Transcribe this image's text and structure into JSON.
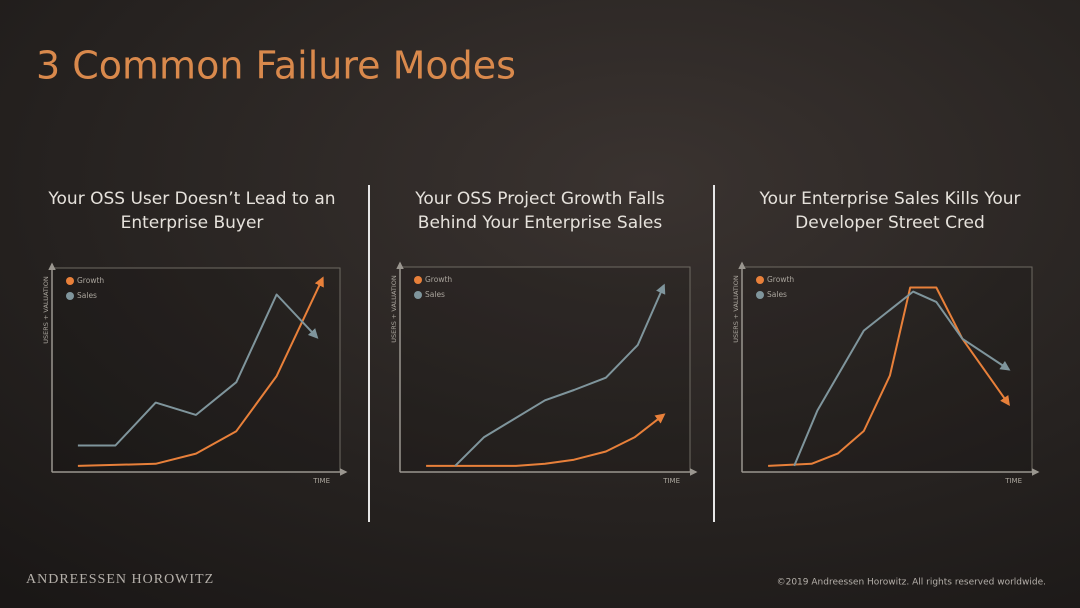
{
  "title": "3 Common Failure Modes",
  "footer": {
    "brand": "ANDREESSEN HOROWITZ",
    "copyright": "©2019 Andreessen Horowitz. All rights reserved worldwide."
  },
  "chart_data": [
    {
      "type": "line",
      "title": [
        "Your OSS User Doesn’t Lead to an",
        "Enterprise Buyer"
      ],
      "x_label": "TIME",
      "y_label": "USERS + VALUATION",
      "xlim": [
        0,
        100
      ],
      "ylim": [
        0,
        100
      ],
      "legend": "upper left",
      "series": [
        {
          "name": "Growth",
          "color": "#e8803a",
          "x": [
            9,
            36,
            50,
            64,
            78,
            94
          ],
          "values": [
            3,
            4,
            9,
            20,
            47,
            95
          ]
        },
        {
          "name": "Sales",
          "color": "#7f959c",
          "x": [
            9,
            22,
            36,
            50,
            64,
            78,
            92
          ],
          "values": [
            13,
            13,
            34,
            28,
            44,
            87,
            66
          ]
        }
      ]
    },
    {
      "type": "line",
      "title": [
        "Your OSS Project Growth Falls",
        "Behind Your Enterprise Sales"
      ],
      "x_label": "TIME",
      "y_label": "USERS + VALUATION",
      "xlim": [
        0,
        100
      ],
      "ylim": [
        0,
        100
      ],
      "legend": "upper left",
      "series": [
        {
          "name": "Growth",
          "color": "#e8803a",
          "x": [
            9,
            40,
            50,
            60,
            71,
            81,
            91
          ],
          "values": [
            3,
            3,
            4,
            6,
            10,
            17,
            28
          ]
        },
        {
          "name": "Sales",
          "color": "#7f959c",
          "x": [
            19,
            29,
            50,
            60,
            71,
            82,
            91
          ],
          "values": [
            3,
            17,
            35,
            40,
            46,
            62,
            91
          ]
        }
      ]
    },
    {
      "type": "line",
      "title": [
        "Your Enterprise Sales Kills Your",
        "Developer Street Cred"
      ],
      "x_label": "TIME",
      "y_label": "USERS + VALUATION",
      "xlim": [
        0,
        100
      ],
      "ylim": [
        0,
        100
      ],
      "legend": "upper left",
      "series": [
        {
          "name": "Growth",
          "color": "#e8803a",
          "x": [
            9,
            24,
            33,
            42,
            51,
            58,
            67,
            76,
            92
          ],
          "values": [
            3,
            4,
            9,
            20,
            47,
            90,
            90,
            65,
            33
          ]
        },
        {
          "name": "Sales",
          "color": "#7f959c",
          "x": [
            18,
            26,
            42,
            59,
            67,
            76,
            92
          ],
          "values": [
            3,
            30,
            69,
            88,
            83,
            65,
            50
          ]
        }
      ]
    }
  ]
}
